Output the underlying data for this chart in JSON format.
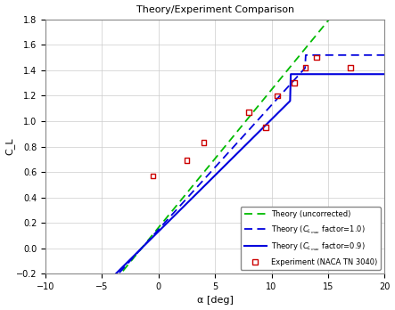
{
  "title": "Theory/Experiment Comparison",
  "xlabel": "α [deg]",
  "ylabel": "C_L",
  "xlim": [
    -10,
    20
  ],
  "ylim": [
    -0.2,
    1.8
  ],
  "xticks": [
    -10,
    -5,
    0,
    5,
    10,
    15,
    20
  ],
  "yticks": [
    -0.2,
    0,
    0.2,
    0.4,
    0.6,
    0.8,
    1.0,
    1.2,
    1.4,
    1.6,
    1.8
  ],
  "alpha_zero_lift_unc": -1.5,
  "alpha_zero_lift_cor": -1.5,
  "cl_alpha_uncorrected_per_deg": 0.1085,
  "cl_alpha_factor1_per_deg": 0.098,
  "cl_alpha_factor09_per_deg": 0.098,
  "cl_max_factor1": 1.52,
  "cl_max_factor09": 1.37,
  "stall_alpha_factor1": 13.0,
  "stall_alpha_factor09": 11.7,
  "exp_alpha": [
    -0.5,
    2.5,
    4.0,
    8.0,
    9.5,
    10.5,
    12.0,
    13.0,
    14.0,
    17.0
  ],
  "exp_cl": [
    0.57,
    0.69,
    0.83,
    1.07,
    0.95,
    1.2,
    1.3,
    1.42,
    1.5,
    1.42
  ],
  "color_uncorrected": "#00bb00",
  "color_factor1": "#0000dd",
  "color_factor09": "#0000dd",
  "color_exp": "#cc0000",
  "bg_color": "#ffffff",
  "title_fontsize": 8,
  "axis_fontsize": 8,
  "tick_fontsize": 7,
  "legend_fontsize": 6
}
